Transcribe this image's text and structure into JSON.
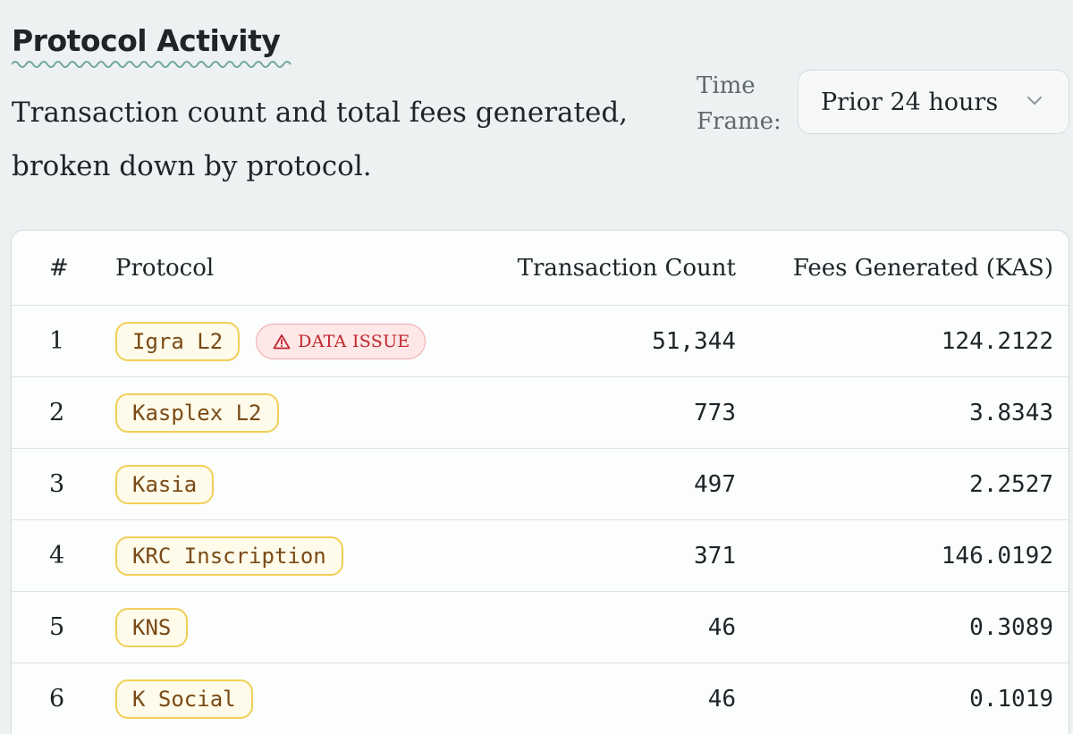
{
  "header": {
    "title": "Protocol Activity",
    "subtitle": "Transaction count and total fees generated, broken down by protocol."
  },
  "time_frame": {
    "label": "Time Frame:",
    "selected": "Prior 24 hours"
  },
  "table": {
    "columns": [
      "#",
      "Protocol",
      "Transaction Count",
      "Fees Generated (KAS)"
    ],
    "rows": [
      {
        "rank": "1",
        "protocol": "Igra L2",
        "badge": "DATA ISSUE",
        "tx_count": "51,344",
        "fees": "124.2122"
      },
      {
        "rank": "2",
        "protocol": "Kasplex L2",
        "tx_count": "773",
        "fees": "3.8343"
      },
      {
        "rank": "3",
        "protocol": "Kasia",
        "tx_count": "497",
        "fees": "2.2527"
      },
      {
        "rank": "4",
        "protocol": "KRC Inscription",
        "tx_count": "371",
        "fees": "146.0192"
      },
      {
        "rank": "5",
        "protocol": "KNS",
        "tx_count": "46",
        "fees": "0.3089"
      },
      {
        "rank": "6",
        "protocol": "K Social",
        "tx_count": "46",
        "fees": "0.1019"
      }
    ]
  },
  "colors": {
    "page_bg": "#edf1f2",
    "pill_border": "#f1cf57",
    "pill_text": "#7a4a16",
    "issue_bg": "#fde7e7",
    "issue_text": "#c0262d",
    "squiggle": "#6fa69a"
  },
  "icons": {
    "dropdown": "chevron-down-icon",
    "badge": "warning-triangle-icon"
  }
}
